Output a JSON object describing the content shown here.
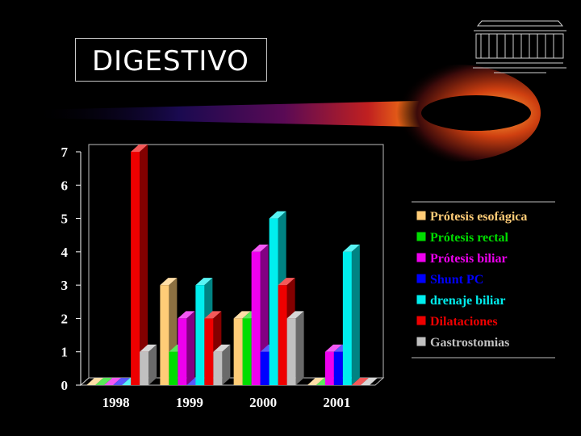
{
  "slide": {
    "title": "DIGESTIVO"
  },
  "chart_data": {
    "type": "bar",
    "categories": [
      "1998",
      "1999",
      "2000",
      "2001"
    ],
    "ylim": [
      0,
      7
    ],
    "yticks": [
      0,
      1,
      2,
      3,
      4,
      5,
      6,
      7
    ],
    "legend_position": "right",
    "series": [
      {
        "name": "Prótesis esofágica",
        "color": "#ffcc77",
        "values": [
          0,
          3,
          2,
          0
        ]
      },
      {
        "name": "Prótesis rectal",
        "color": "#00dd00",
        "values": [
          0,
          1,
          2,
          0
        ]
      },
      {
        "name": "Prótesis biliar",
        "color": "#ee00ee",
        "values": [
          0,
          2,
          4,
          1
        ]
      },
      {
        "name": "Shunt PC",
        "color": "#0000ff",
        "values": [
          0,
          0,
          1,
          1
        ]
      },
      {
        "name": "drenaje biliar",
        "color": "#00eeee",
        "values": [
          0,
          3,
          5,
          4
        ]
      },
      {
        "name": "Dilataciones",
        "color": "#ee0000",
        "values": [
          7,
          2,
          3,
          0
        ]
      },
      {
        "name": "Gastrostomias",
        "color": "#c0c0c0",
        "values": [
          1,
          1,
          2,
          0
        ]
      }
    ]
  }
}
